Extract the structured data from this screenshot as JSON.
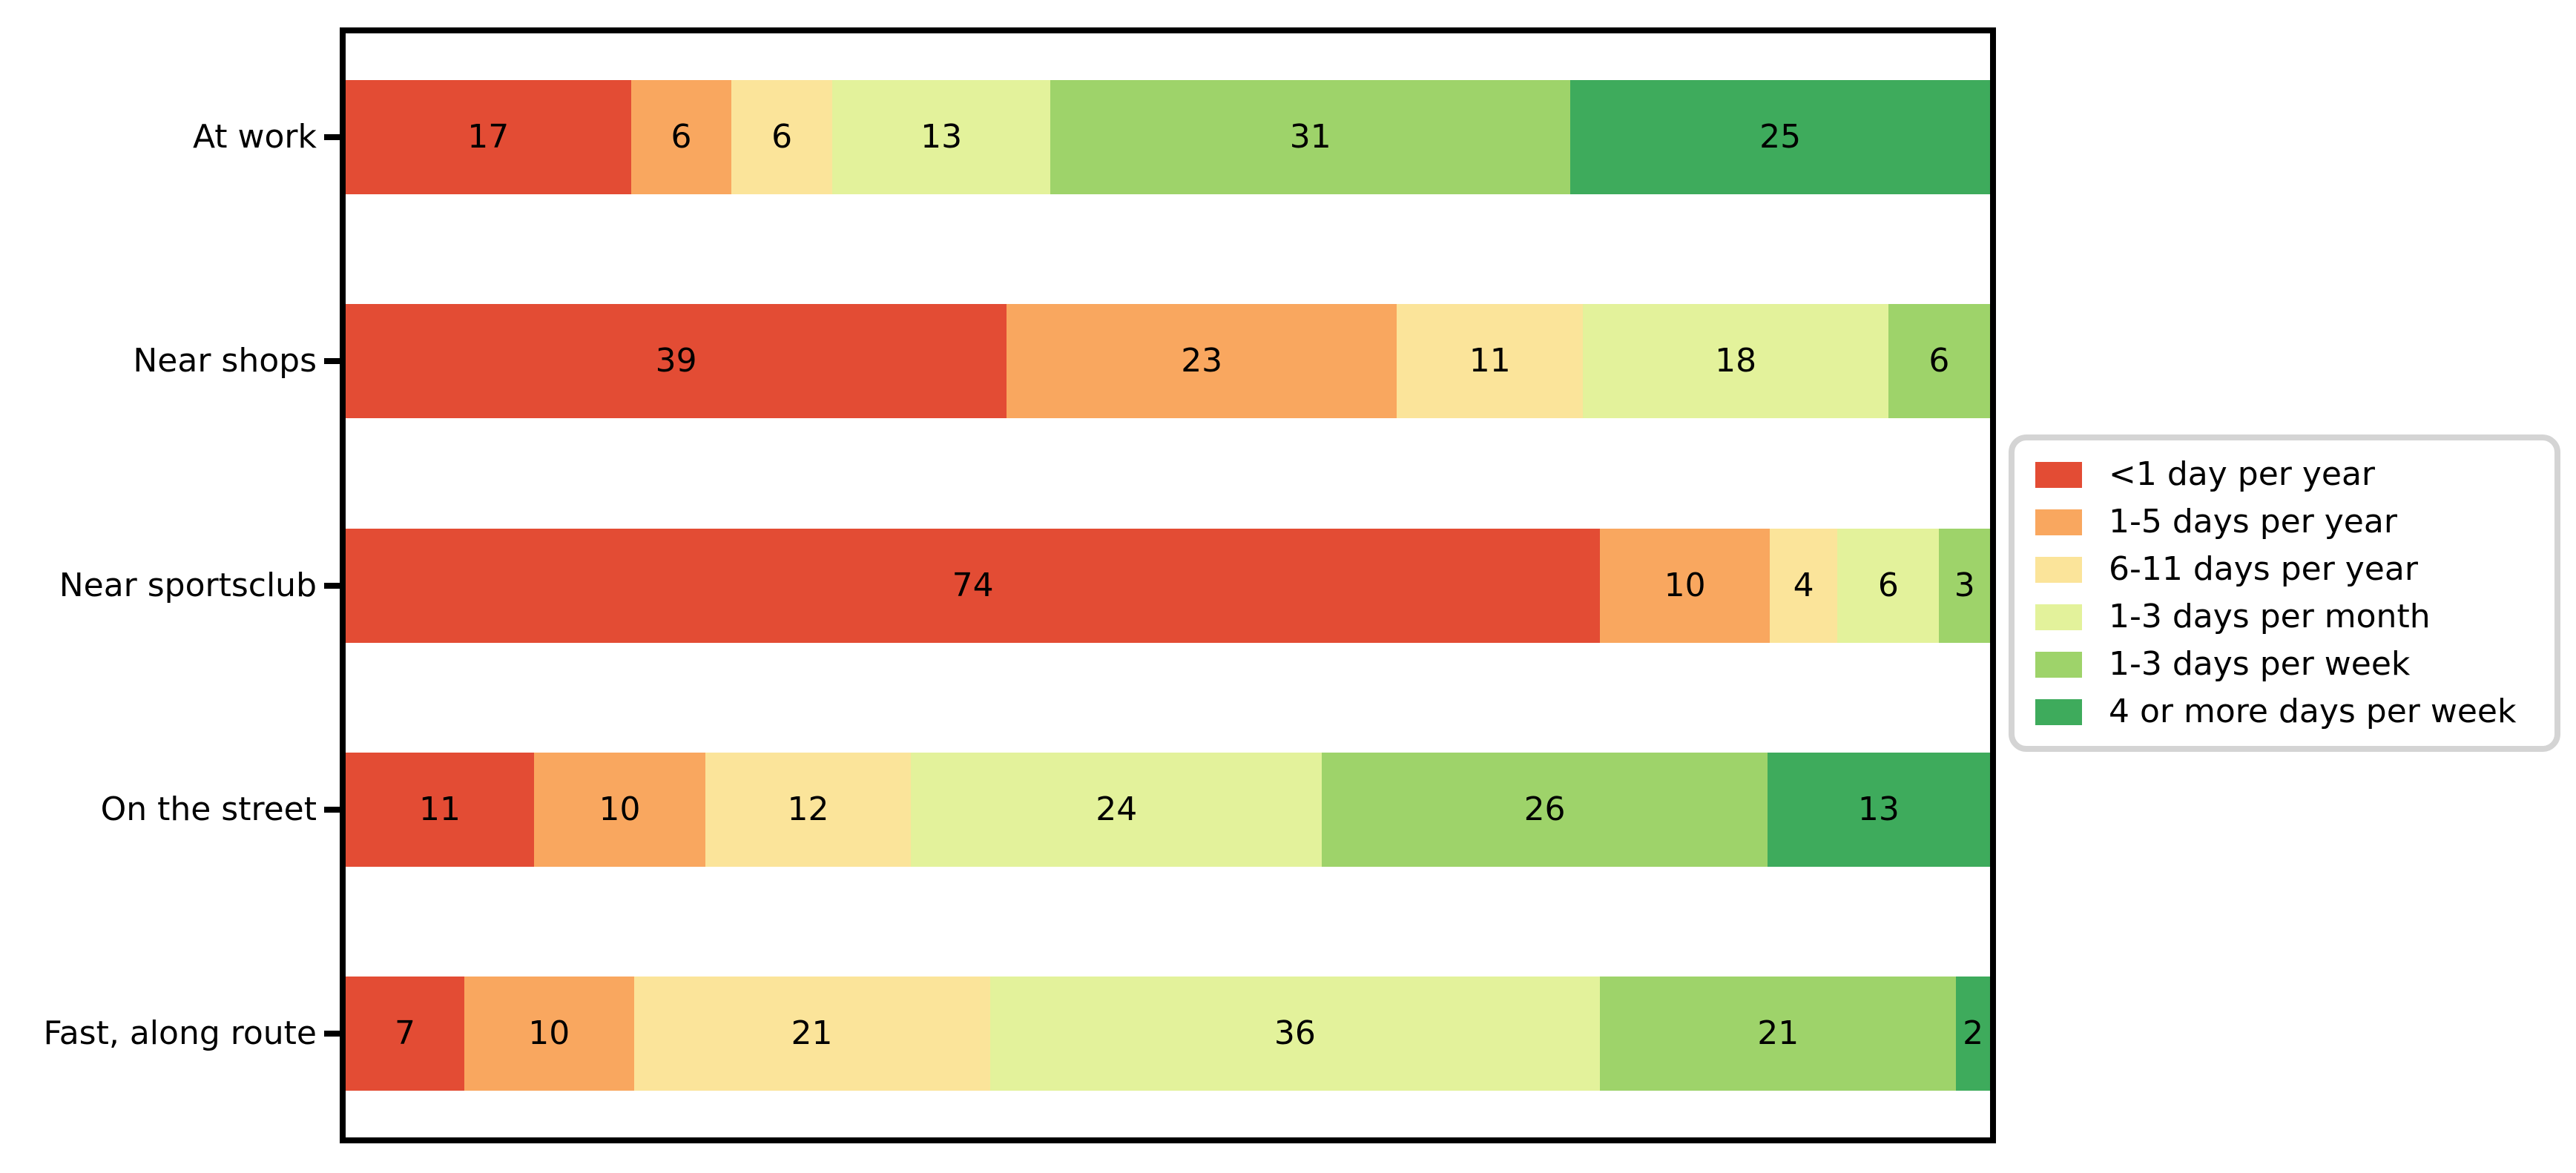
{
  "figure": {
    "background_color": "#ffffff",
    "frame_color": "#000000"
  },
  "chart_data": {
    "type": "bar",
    "subtype": "horizontal_stacked_percentage",
    "title": "",
    "xlabel": "",
    "ylabel": "",
    "x_axis_tick_labels_visible": false,
    "grid": false,
    "legend_position": "right-outside",
    "legend_border_color": "#d4d4d4",
    "bars_fill_full_width": true,
    "value_labels_inside_segments": true,
    "categories": [
      "At work",
      "Near shops",
      "Near sportsclub",
      "On the street",
      "Fast, along route"
    ],
    "series": [
      {
        "name": "<1 day per year",
        "color": "#e34c34",
        "values": [
          17,
          39,
          74,
          11,
          7
        ]
      },
      {
        "name": "1-5 days per year",
        "color": "#f9a75f",
        "values": [
          6,
          23,
          10,
          10,
          10
        ]
      },
      {
        "name": "6-11 days per year",
        "color": "#fbe49a",
        "values": [
          6,
          11,
          4,
          12,
          21
        ]
      },
      {
        "name": "1-3 days per month",
        "color": "#e3f29b",
        "values": [
          13,
          18,
          6,
          24,
          36
        ]
      },
      {
        "name": "1-3 days per week",
        "color": "#9ed36a",
        "values": [
          31,
          6,
          3,
          26,
          21
        ]
      },
      {
        "name": "4 or more days per week",
        "color": "#3eab5c",
        "values": [
          25,
          0,
          0,
          13,
          2
        ]
      }
    ],
    "row_totals": [
      98,
      97,
      97,
      96,
      97
    ]
  }
}
